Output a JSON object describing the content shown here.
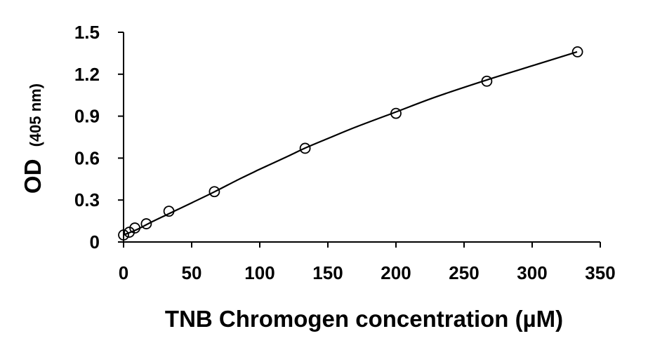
{
  "chart_data": {
    "type": "scatter",
    "title": "",
    "xlabel": "TNB Chromogen concentration (µM)",
    "ylabel_main": "OD",
    "ylabel_unit": "(405 nm)",
    "xlim": [
      0,
      350
    ],
    "ylim": [
      0,
      1.5
    ],
    "x_ticks": [
      0,
      50,
      100,
      150,
      200,
      250,
      300,
      350
    ],
    "x_tick_labels": [
      "0",
      "50",
      "100",
      "150",
      "200",
      "250",
      "300",
      "350"
    ],
    "y_ticks": [
      0,
      0.3,
      0.6,
      0.9,
      1.2,
      1.5
    ],
    "y_tick_labels": [
      "0",
      "0.3",
      "0.6",
      "0.9",
      "1.2",
      "1.5"
    ],
    "grid": false,
    "legend": "none",
    "marker": "open-circle",
    "trendline": "smooth-fit",
    "colors": {
      "axis": "#000000",
      "marker": "#000000",
      "line": "#000000",
      "background": "#ffffff"
    },
    "series": [
      {
        "x": [
          0,
          4.2,
          8.3,
          16.7,
          33.3,
          66.7,
          133.3,
          200,
          266.7,
          333.3
        ],
        "y": [
          0.05,
          0.07,
          0.1,
          0.13,
          0.22,
          0.36,
          0.67,
          0.92,
          1.15,
          1.36
        ]
      }
    ],
    "fit_line": {
      "x": [
        0,
        10,
        20,
        35,
        50,
        67,
        85,
        100,
        120,
        133,
        150,
        170,
        200,
        230,
        267,
        300,
        333
      ],
      "y": [
        0.05,
        0.09,
        0.14,
        0.21,
        0.28,
        0.36,
        0.45,
        0.52,
        0.61,
        0.67,
        0.74,
        0.82,
        0.93,
        1.04,
        1.16,
        1.26,
        1.36
      ]
    }
  }
}
